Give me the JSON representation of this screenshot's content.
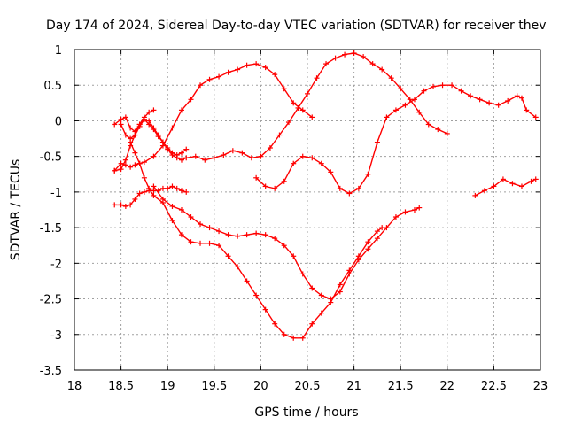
{
  "chart_data": {
    "type": "scatter",
    "title": "Day 174 of 2024, Sidereal Day-to-day VTEC variation (SDTVAR) for receiver thev",
    "xlabel": "GPS time / hours",
    "ylabel": "SDTVAR / TECUs",
    "xlim": [
      18,
      23
    ],
    "ylim": [
      -3.5,
      1
    ],
    "x_ticks": [
      "18",
      "18.5",
      "19",
      "19.5",
      "20",
      "20.5",
      "21",
      "21.5",
      "22",
      "22.5",
      "23"
    ],
    "y_ticks": [
      "1",
      "0.5",
      "0",
      "-0.5",
      "-1",
      "-1.5",
      "-2",
      "-2.5",
      "-3",
      "-3.5"
    ],
    "grid": true,
    "marker": "+",
    "color": "#ff0000",
    "series": [
      {
        "name": "track-1",
        "points": [
          [
            18.43,
            -0.05
          ],
          [
            18.5,
            0.02
          ],
          [
            18.55,
            0.05
          ],
          [
            18.6,
            -0.1
          ],
          [
            18.65,
            -0.15
          ],
          [
            18.7,
            -0.05
          ],
          [
            18.75,
            0.05
          ],
          [
            18.8,
            0.12
          ],
          [
            18.85,
            0.15
          ]
        ]
      },
      {
        "name": "track-2",
        "points": [
          [
            18.43,
            -0.7
          ],
          [
            18.5,
            -0.68
          ],
          [
            18.55,
            -0.55
          ],
          [
            18.6,
            -0.35
          ],
          [
            18.65,
            -0.2
          ],
          [
            18.7,
            -0.05
          ],
          [
            18.75,
            0.02
          ],
          [
            18.8,
            -0.05
          ],
          [
            18.85,
            -0.12
          ],
          [
            18.9,
            -0.22
          ],
          [
            18.95,
            -0.3
          ],
          [
            19.0,
            -0.38
          ],
          [
            19.05,
            -0.45
          ],
          [
            19.1,
            -0.48
          ],
          [
            19.15,
            -0.45
          ],
          [
            19.2,
            -0.4
          ]
        ]
      },
      {
        "name": "track-3",
        "points": [
          [
            18.43,
            -1.18
          ],
          [
            18.5,
            -1.18
          ],
          [
            18.55,
            -1.2
          ],
          [
            18.6,
            -1.18
          ],
          [
            18.65,
            -1.1
          ],
          [
            18.7,
            -1.02
          ],
          [
            18.75,
            -1.0
          ],
          [
            18.8,
            -0.98
          ],
          [
            18.85,
            -0.98
          ],
          [
            18.9,
            -0.98
          ],
          [
            18.95,
            -0.95
          ],
          [
            19.0,
            -0.95
          ],
          [
            19.05,
            -0.92
          ],
          [
            19.1,
            -0.95
          ],
          [
            19.15,
            -0.98
          ],
          [
            19.2,
            -1.0
          ]
        ]
      },
      {
        "name": "track-4",
        "points": [
          [
            18.5,
            -0.05
          ],
          [
            18.55,
            -0.2
          ],
          [
            18.6,
            -0.25
          ],
          [
            18.65,
            -0.2
          ],
          [
            18.7,
            -0.08
          ],
          [
            18.75,
            0.02
          ],
          [
            18.8,
            0.0
          ],
          [
            18.85,
            -0.1
          ],
          [
            18.9,
            -0.2
          ],
          [
            18.95,
            -0.3
          ],
          [
            19.0,
            -0.4
          ],
          [
            19.05,
            -0.48
          ],
          [
            19.1,
            -0.52
          ],
          [
            19.15,
            -0.55
          ],
          [
            19.2,
            -0.52
          ],
          [
            19.3,
            -0.5
          ],
          [
            19.4,
            -0.55
          ],
          [
            19.5,
            -0.52
          ],
          [
            19.6,
            -0.48
          ],
          [
            19.7,
            -0.42
          ],
          [
            19.8,
            -0.45
          ],
          [
            19.9,
            -0.52
          ],
          [
            20.0,
            -0.5
          ],
          [
            20.1,
            -0.38
          ],
          [
            20.2,
            -0.2
          ],
          [
            20.3,
            -0.02
          ],
          [
            20.4,
            0.18
          ],
          [
            20.5,
            0.38
          ],
          [
            20.6,
            0.6
          ],
          [
            20.7,
            0.8
          ],
          [
            20.8,
            0.88
          ],
          [
            20.9,
            0.93
          ],
          [
            21.0,
            0.95
          ],
          [
            21.1,
            0.9
          ],
          [
            21.2,
            0.8
          ],
          [
            21.3,
            0.72
          ],
          [
            21.4,
            0.6
          ],
          [
            21.5,
            0.45
          ],
          [
            21.6,
            0.3
          ],
          [
            21.7,
            0.12
          ],
          [
            21.8,
            -0.05
          ],
          [
            21.9,
            -0.12
          ],
          [
            22.0,
            -0.18
          ]
        ]
      },
      {
        "name": "track-5",
        "points": [
          [
            18.43,
            -0.7
          ],
          [
            18.5,
            -0.6
          ],
          [
            18.55,
            -0.62
          ],
          [
            18.6,
            -0.65
          ],
          [
            18.65,
            -0.62
          ],
          [
            18.7,
            -0.6
          ],
          [
            18.75,
            -0.58
          ],
          [
            18.85,
            -0.5
          ],
          [
            18.95,
            -0.35
          ],
          [
            19.05,
            -0.1
          ],
          [
            19.15,
            0.15
          ],
          [
            19.25,
            0.3
          ],
          [
            19.35,
            0.5
          ],
          [
            19.45,
            0.58
          ],
          [
            19.55,
            0.62
          ],
          [
            19.65,
            0.68
          ],
          [
            19.75,
            0.72
          ],
          [
            19.85,
            0.78
          ],
          [
            19.95,
            0.8
          ],
          [
            20.05,
            0.75
          ],
          [
            20.15,
            0.65
          ],
          [
            20.25,
            0.45
          ],
          [
            20.35,
            0.25
          ],
          [
            20.45,
            0.15
          ],
          [
            20.55,
            0.05
          ]
        ]
      },
      {
        "name": "track-6",
        "points": [
          [
            18.6,
            -0.3
          ],
          [
            18.65,
            -0.45
          ],
          [
            18.7,
            -0.6
          ],
          [
            18.75,
            -0.8
          ],
          [
            18.8,
            -0.95
          ],
          [
            18.85,
            -1.05
          ],
          [
            18.95,
            -1.15
          ],
          [
            19.05,
            -1.4
          ],
          [
            19.15,
            -1.6
          ],
          [
            19.25,
            -1.7
          ],
          [
            19.35,
            -1.72
          ],
          [
            19.45,
            -1.72
          ],
          [
            19.55,
            -1.75
          ],
          [
            19.65,
            -1.9
          ],
          [
            19.75,
            -2.05
          ],
          [
            19.85,
            -2.25
          ],
          [
            19.95,
            -2.45
          ],
          [
            20.05,
            -2.65
          ],
          [
            20.15,
            -2.85
          ],
          [
            20.25,
            -3.0
          ],
          [
            20.35,
            -3.05
          ],
          [
            20.45,
            -3.05
          ],
          [
            20.55,
            -2.85
          ],
          [
            20.65,
            -2.7
          ],
          [
            20.75,
            -2.55
          ],
          [
            20.85,
            -2.3
          ],
          [
            20.95,
            -2.1
          ],
          [
            21.05,
            -1.9
          ],
          [
            21.15,
            -1.7
          ],
          [
            21.25,
            -1.55
          ],
          [
            21.3,
            -1.5
          ]
        ]
      },
      {
        "name": "track-7",
        "points": [
          [
            18.85,
            -0.92
          ],
          [
            18.95,
            -1.1
          ],
          [
            19.05,
            -1.2
          ],
          [
            19.15,
            -1.25
          ],
          [
            19.25,
            -1.35
          ],
          [
            19.35,
            -1.45
          ],
          [
            19.45,
            -1.5
          ],
          [
            19.55,
            -1.55
          ],
          [
            19.65,
            -1.6
          ],
          [
            19.75,
            -1.62
          ],
          [
            19.85,
            -1.6
          ],
          [
            19.95,
            -1.58
          ],
          [
            20.05,
            -1.6
          ],
          [
            20.15,
            -1.65
          ],
          [
            20.25,
            -1.75
          ],
          [
            20.35,
            -1.9
          ],
          [
            20.45,
            -2.15
          ],
          [
            20.55,
            -2.35
          ],
          [
            20.65,
            -2.45
          ],
          [
            20.75,
            -2.5
          ],
          [
            20.85,
            -2.4
          ],
          [
            20.95,
            -2.15
          ],
          [
            21.05,
            -1.95
          ],
          [
            21.15,
            -1.8
          ],
          [
            21.25,
            -1.65
          ],
          [
            21.35,
            -1.5
          ],
          [
            21.45,
            -1.35
          ],
          [
            21.55,
            -1.28
          ],
          [
            21.65,
            -1.25
          ],
          [
            21.7,
            -1.22
          ]
        ]
      },
      {
        "name": "track-8",
        "points": [
          [
            19.95,
            -0.8
          ],
          [
            20.05,
            -0.92
          ],
          [
            20.15,
            -0.95
          ],
          [
            20.25,
            -0.85
          ],
          [
            20.35,
            -0.6
          ],
          [
            20.45,
            -0.5
          ],
          [
            20.55,
            -0.52
          ],
          [
            20.65,
            -0.6
          ],
          [
            20.75,
            -0.72
          ],
          [
            20.85,
            -0.95
          ],
          [
            20.95,
            -1.02
          ],
          [
            21.05,
            -0.95
          ],
          [
            21.15,
            -0.75
          ],
          [
            21.25,
            -0.3
          ],
          [
            21.35,
            0.05
          ],
          [
            21.45,
            0.15
          ],
          [
            21.55,
            0.22
          ],
          [
            21.65,
            0.3
          ],
          [
            21.75,
            0.42
          ],
          [
            21.85,
            0.48
          ],
          [
            21.95,
            0.5
          ],
          [
            22.05,
            0.5
          ],
          [
            22.15,
            0.42
          ],
          [
            22.25,
            0.35
          ],
          [
            22.35,
            0.3
          ],
          [
            22.45,
            0.25
          ],
          [
            22.55,
            0.22
          ],
          [
            22.65,
            0.28
          ],
          [
            22.75,
            0.35
          ],
          [
            22.8,
            0.32
          ],
          [
            22.85,
            0.15
          ],
          [
            22.95,
            0.05
          ]
        ]
      },
      {
        "name": "track-9",
        "points": [
          [
            22.3,
            -1.05
          ],
          [
            22.4,
            -0.98
          ],
          [
            22.5,
            -0.92
          ],
          [
            22.6,
            -0.82
          ],
          [
            22.7,
            -0.88
          ],
          [
            22.8,
            -0.92
          ],
          [
            22.9,
            -0.85
          ],
          [
            22.95,
            -0.82
          ]
        ]
      }
    ]
  }
}
